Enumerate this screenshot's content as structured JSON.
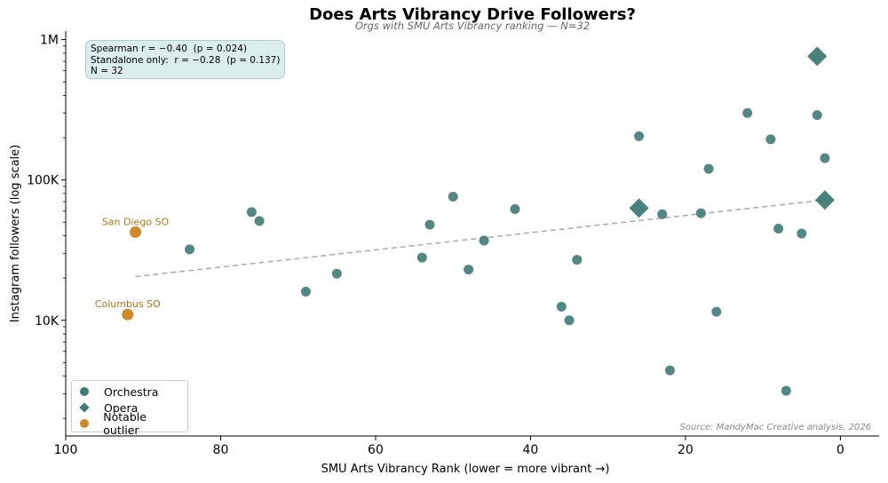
{
  "chart_data": {
    "type": "scatter",
    "title": "Does Arts Vibrancy Drive Followers?",
    "subtitle": "Orgs with SMU Arts Vibrancy ranking — N=32",
    "xlabel": "SMU Arts Vibrancy Rank  (lower = more vibrant  →)",
    "ylabel": "Instagram followers (log scale)",
    "x_inverted": true,
    "xlim": [
      100,
      -5
    ],
    "y_scale": "log",
    "ylim": [
      1500,
      1150000
    ],
    "x_ticks": [
      {
        "value": 100,
        "label": "100"
      },
      {
        "value": 80,
        "label": "80"
      },
      {
        "value": 60,
        "label": "60"
      },
      {
        "value": 40,
        "label": "40"
      },
      {
        "value": 20,
        "label": "20"
      },
      {
        "value": 0,
        "label": "0"
      }
    ],
    "y_ticks": [
      {
        "value": 10000,
        "label": "10K"
      },
      {
        "value": 100000,
        "label": "100K"
      },
      {
        "value": 1000000,
        "label": "1M"
      }
    ],
    "grid": false,
    "legend_position": "bottom-left",
    "series": [
      {
        "name": "Orchestra",
        "marker": "circle",
        "color": "#3f7a74",
        "points": [
          {
            "x": 84,
            "y": 32000
          },
          {
            "x": 76,
            "y": 59000
          },
          {
            "x": 75,
            "y": 51000
          },
          {
            "x": 69,
            "y": 16000
          },
          {
            "x": 65,
            "y": 21500
          },
          {
            "x": 54,
            "y": 28000
          },
          {
            "x": 53,
            "y": 48000
          },
          {
            "x": 50,
            "y": 76000
          },
          {
            "x": 48,
            "y": 23000
          },
          {
            "x": 46,
            "y": 37000
          },
          {
            "x": 42,
            "y": 62000
          },
          {
            "x": 36,
            "y": 12500
          },
          {
            "x": 35,
            "y": 10000
          },
          {
            "x": 34,
            "y": 27000
          },
          {
            "x": 26,
            "y": 205000
          },
          {
            "x": 23,
            "y": 57000
          },
          {
            "x": 22,
            "y": 4400
          },
          {
            "x": 18,
            "y": 58000
          },
          {
            "x": 17,
            "y": 120000
          },
          {
            "x": 16,
            "y": 11500
          },
          {
            "x": 12,
            "y": 300000
          },
          {
            "x": 9,
            "y": 195000
          },
          {
            "x": 8,
            "y": 45000
          },
          {
            "x": 7,
            "y": 3150
          },
          {
            "x": 5,
            "y": 41500
          },
          {
            "x": 3,
            "y": 290000
          },
          {
            "x": 2,
            "y": 143000
          }
        ]
      },
      {
        "name": "Opera",
        "marker": "diamond",
        "color": "#3f7a74",
        "points": [
          {
            "x": 26,
            "y": 63000
          },
          {
            "x": 3,
            "y": 760000
          },
          {
            "x": 2,
            "y": 72000
          }
        ]
      },
      {
        "name": "Notable outlier",
        "marker": "circle",
        "color": "#d08a27",
        "points": [
          {
            "x": 91,
            "y": 42500,
            "label": "San Diego SO"
          },
          {
            "x": 92,
            "y": 11000,
            "label": "Columbus SO"
          }
        ]
      }
    ],
    "trendline": {
      "style": "dashed",
      "color": "#aaaaaa",
      "points": [
        {
          "x": 91,
          "y": 20500
        },
        {
          "x": 2,
          "y": 72000
        }
      ]
    },
    "annotation_box": [
      "Spearman r = −0.40  (p = 0.024)",
      "Standalone only:  r = −0.28  (p = 0.137)",
      "N = 32"
    ],
    "source": "Source: MandyMac Creative analysis, 2026"
  }
}
